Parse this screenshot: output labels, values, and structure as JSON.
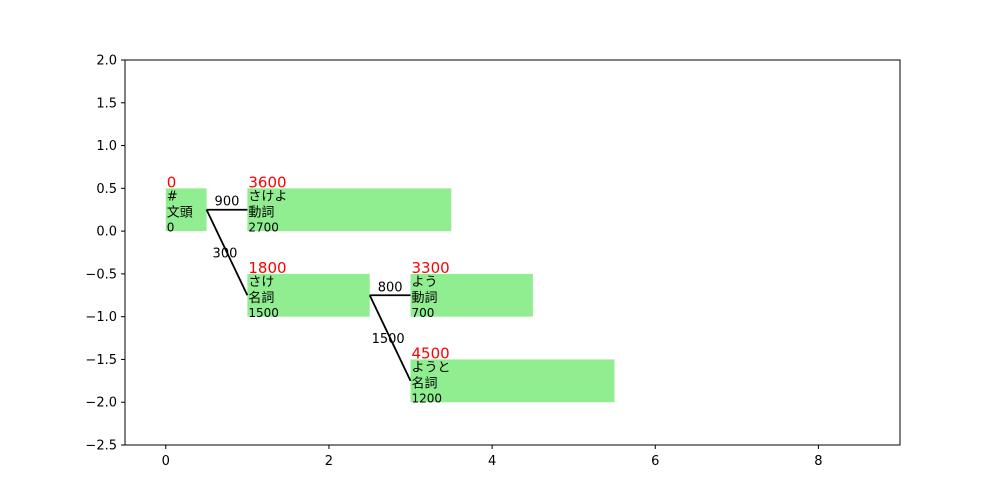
{
  "chart_data": {
    "type": "lattice",
    "xlim": [
      -0.5,
      9.0
    ],
    "ylim": [
      -2.5,
      2.0
    ],
    "x_ticks": [
      0,
      2,
      4,
      6,
      8
    ],
    "y_ticks": [
      2.0,
      1.5,
      1.0,
      0.5,
      0.0,
      -0.5,
      -1.0,
      -1.5,
      -2.0,
      -2.5
    ],
    "x_tick_labels": [
      "0",
      "2",
      "4",
      "6",
      "8"
    ],
    "y_tick_labels": [
      "2.0",
      "1.5",
      "1.0",
      "0.5",
      "0.0",
      "−0.5",
      "−1.0",
      "−1.5",
      "−2.0",
      "−2.5"
    ],
    "colors": {
      "node_fill": "#90ee90",
      "total_text": "#ff0000",
      "edge": "#000000"
    },
    "nodes": [
      {
        "id": "bos",
        "x_start": 0.0,
        "x_end": 0.5,
        "y_bottom": 0.0,
        "y_top": 0.5,
        "surface": "#",
        "pos": "文頭",
        "word_cost": "0",
        "total_cost": "0"
      },
      {
        "id": "sakeyo",
        "x_start": 1.0,
        "x_end": 3.5,
        "y_bottom": 0.0,
        "y_top": 0.5,
        "surface": "さけよ",
        "pos": "動詞",
        "word_cost": "2700",
        "total_cost": "3600"
      },
      {
        "id": "sake",
        "x_start": 1.0,
        "x_end": 2.5,
        "y_bottom": -1.0,
        "y_top": -0.5,
        "surface": "さけ",
        "pos": "名詞",
        "word_cost": "1500",
        "total_cost": "1800"
      },
      {
        "id": "you",
        "x_start": 3.0,
        "x_end": 4.5,
        "y_bottom": -1.0,
        "y_top": -0.5,
        "surface": "よう",
        "pos": "動詞",
        "word_cost": "700",
        "total_cost": "3300"
      },
      {
        "id": "youto",
        "x_start": 3.0,
        "x_end": 5.5,
        "y_bottom": -2.0,
        "y_top": -1.5,
        "surface": "ようと",
        "pos": "名詞",
        "word_cost": "1200",
        "total_cost": "4500"
      }
    ],
    "edges": [
      {
        "from": "bos",
        "to": "sakeyo",
        "cost": "900"
      },
      {
        "from": "bos",
        "to": "sake",
        "cost": "300"
      },
      {
        "from": "sake",
        "to": "you",
        "cost": "800"
      },
      {
        "from": "sake",
        "to": "youto",
        "cost": "1500"
      }
    ]
  }
}
